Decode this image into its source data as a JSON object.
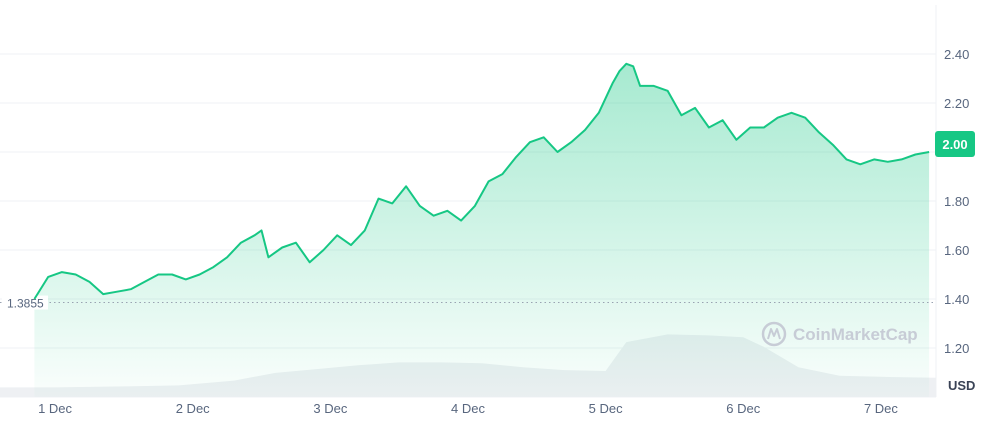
{
  "chart_data": {
    "type": "area",
    "x_ticks": [
      "1 Dec",
      "2 Dec",
      "3 Dec",
      "4 Dec",
      "5 Dec",
      "6 Dec",
      "7 Dec"
    ],
    "y_ticks": [
      "1.20",
      "1.40",
      "1.60",
      "1.80",
      "2.00",
      "2.20",
      "2.40"
    ],
    "y_unit": "USD",
    "ylim": [
      1.0,
      2.6
    ],
    "grid": true,
    "reference_line": {
      "value": 1.3855,
      "label": "1.3855"
    },
    "current_price": {
      "value": 2.0,
      "label": "2.00"
    },
    "watermark": "CoinMarketCap",
    "line_color": "#16c784",
    "x_range": [
      0.6,
      7.4
    ],
    "price_series": [
      [
        0.85,
        1.4
      ],
      [
        0.95,
        1.49
      ],
      [
        1.05,
        1.51
      ],
      [
        1.15,
        1.5
      ],
      [
        1.25,
        1.47
      ],
      [
        1.35,
        1.42
      ],
      [
        1.45,
        1.43
      ],
      [
        1.55,
        1.44
      ],
      [
        1.65,
        1.47
      ],
      [
        1.75,
        1.5
      ],
      [
        1.85,
        1.5
      ],
      [
        1.95,
        1.48
      ],
      [
        2.05,
        1.5
      ],
      [
        2.15,
        1.53
      ],
      [
        2.25,
        1.57
      ],
      [
        2.35,
        1.63
      ],
      [
        2.45,
        1.66
      ],
      [
        2.5,
        1.68
      ],
      [
        2.55,
        1.57
      ],
      [
        2.65,
        1.61
      ],
      [
        2.75,
        1.63
      ],
      [
        2.85,
        1.55
      ],
      [
        2.95,
        1.6
      ],
      [
        3.05,
        1.66
      ],
      [
        3.15,
        1.62
      ],
      [
        3.25,
        1.68
      ],
      [
        3.35,
        1.81
      ],
      [
        3.45,
        1.79
      ],
      [
        3.55,
        1.86
      ],
      [
        3.65,
        1.78
      ],
      [
        3.75,
        1.74
      ],
      [
        3.85,
        1.76
      ],
      [
        3.95,
        1.72
      ],
      [
        4.05,
        1.78
      ],
      [
        4.15,
        1.88
      ],
      [
        4.25,
        1.91
      ],
      [
        4.35,
        1.98
      ],
      [
        4.45,
        2.04
      ],
      [
        4.55,
        2.06
      ],
      [
        4.65,
        2.0
      ],
      [
        4.75,
        2.04
      ],
      [
        4.85,
        2.09
      ],
      [
        4.95,
        2.16
      ],
      [
        5.05,
        2.28
      ],
      [
        5.1,
        2.33
      ],
      [
        5.15,
        2.36
      ],
      [
        5.2,
        2.35
      ],
      [
        5.25,
        2.27
      ],
      [
        5.35,
        2.27
      ],
      [
        5.45,
        2.25
      ],
      [
        5.55,
        2.15
      ],
      [
        5.65,
        2.18
      ],
      [
        5.75,
        2.1
      ],
      [
        5.85,
        2.13
      ],
      [
        5.95,
        2.05
      ],
      [
        6.05,
        2.1
      ],
      [
        6.15,
        2.1
      ],
      [
        6.25,
        2.14
      ],
      [
        6.35,
        2.16
      ],
      [
        6.45,
        2.14
      ],
      [
        6.55,
        2.08
      ],
      [
        6.65,
        2.03
      ],
      [
        6.75,
        1.97
      ],
      [
        6.85,
        1.95
      ],
      [
        6.95,
        1.97
      ],
      [
        7.05,
        1.96
      ],
      [
        7.15,
        1.97
      ],
      [
        7.25,
        1.99
      ],
      [
        7.35,
        2.0
      ]
    ],
    "volume_series": [
      [
        0.6,
        0.1
      ],
      [
        1.0,
        0.1
      ],
      [
        1.5,
        0.11
      ],
      [
        1.9,
        0.12
      ],
      [
        2.3,
        0.17
      ],
      [
        2.6,
        0.25
      ],
      [
        2.9,
        0.29
      ],
      [
        3.2,
        0.33
      ],
      [
        3.5,
        0.36
      ],
      [
        3.8,
        0.36
      ],
      [
        4.1,
        0.35
      ],
      [
        4.4,
        0.31
      ],
      [
        4.7,
        0.28
      ],
      [
        5.0,
        0.27
      ],
      [
        5.15,
        0.57
      ],
      [
        5.45,
        0.65
      ],
      [
        5.75,
        0.64
      ],
      [
        6.0,
        0.62
      ],
      [
        6.15,
        0.52
      ],
      [
        6.4,
        0.31
      ],
      [
        6.7,
        0.22
      ],
      [
        7.0,
        0.21
      ],
      [
        7.4,
        0.2
      ]
    ]
  }
}
